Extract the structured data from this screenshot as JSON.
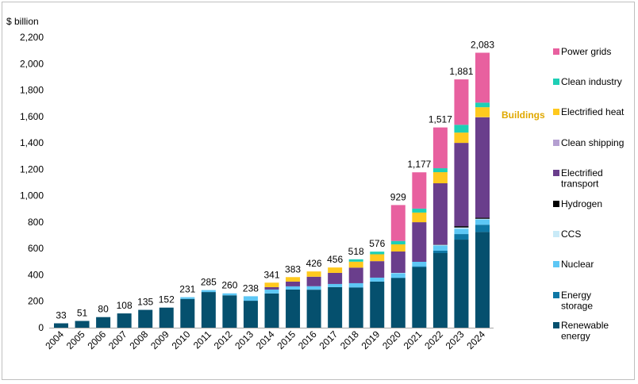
{
  "chart_data": {
    "type": "bar",
    "stacked": true,
    "ylabel": "$ billion",
    "ylim": [
      0,
      2200
    ],
    "yticks": [
      0,
      200,
      400,
      600,
      800,
      1000,
      1200,
      1400,
      1600,
      1800,
      2000,
      2200
    ],
    "ytick_labels": [
      "0",
      "200",
      "400",
      "600",
      "800",
      "1,000",
      "1,200",
      "1,400",
      "1,600",
      "1,800",
      "2,000",
      "2,200"
    ],
    "grid": false,
    "legend_position": "right",
    "categories": [
      "2004",
      "2005",
      "2006",
      "2007",
      "2008",
      "2009",
      "2010",
      "2011",
      "2012",
      "2013",
      "2014",
      "2015",
      "2016",
      "2017",
      "2018",
      "2019",
      "2020",
      "2021",
      "2022",
      "2023",
      "2024"
    ],
    "totals": [
      33,
      51,
      80,
      108,
      135,
      152,
      231,
      285,
      260,
      238,
      341,
      383,
      426,
      456,
      518,
      576,
      929,
      1177,
      1517,
      1881,
      2083
    ],
    "total_labels": [
      "33",
      "51",
      "80",
      "108",
      "135",
      "152",
      "231",
      "285",
      "260",
      "238",
      "341",
      "383",
      "426",
      "456",
      "518",
      "576",
      "929",
      "1,177",
      "1,517",
      "1,881",
      "2,083"
    ],
    "series": [
      {
        "name": "Renewable energy",
        "color": "#05506E",
        "values": [
          33,
          51,
          80,
          108,
          135,
          152,
          218,
          270,
          245,
          204,
          259,
          289,
          287,
          307,
          302,
          349,
          375,
          457,
          565,
          667,
          725
        ]
      },
      {
        "name": "Energy storage",
        "color": "#0E77A5",
        "values": [
          0,
          0,
          0,
          0,
          0,
          0,
          0,
          0,
          0,
          0,
          0,
          0,
          3,
          0,
          6,
          0,
          4,
          8,
          18,
          42,
          55
        ]
      },
      {
        "name": "Nuclear",
        "color": "#5DC7F5",
        "values": [
          0,
          0,
          0,
          0,
          0,
          0,
          13,
          15,
          15,
          34,
          30,
          24,
          24,
          24,
          29,
          30,
          33,
          34,
          40,
          40,
          40
        ]
      },
      {
        "name": "CCS",
        "color": "#C9EAF7",
        "values": [
          0,
          0,
          0,
          0,
          0,
          0,
          0,
          0,
          0,
          0,
          0,
          0,
          0,
          0,
          0,
          0,
          3,
          0,
          4,
          10,
          5
        ]
      },
      {
        "name": "Hydrogen",
        "color": "#000000",
        "values": [
          0,
          0,
          0,
          0,
          0,
          0,
          0,
          0,
          0,
          0,
          0,
          0,
          0,
          0,
          0,
          0,
          0,
          0,
          2,
          10,
          8
        ]
      },
      {
        "name": "Electrified transport",
        "color": "#6A3E8C",
        "values": [
          0,
          0,
          0,
          0,
          0,
          0,
          0,
          0,
          0,
          0,
          18,
          36,
          72,
          84,
          118,
          125,
          162,
          300,
          465,
          631,
          760
        ]
      },
      {
        "name": "Clean shipping",
        "color": "#B49FD1",
        "values": [
          0,
          0,
          0,
          0,
          0,
          0,
          0,
          0,
          0,
          0,
          0,
          0,
          0,
          0,
          0,
          0,
          0,
          0,
          0,
          0,
          2
        ]
      },
      {
        "name": "Electrified heat",
        "color": "#FFC91E",
        "values": [
          0,
          0,
          0,
          0,
          0,
          0,
          0,
          0,
          0,
          0,
          34,
          34,
          40,
          41,
          45,
          52,
          54,
          73,
          84,
          78,
          75
        ]
      },
      {
        "name": "Clean industry",
        "color": "#1ECFB5",
        "values": [
          0,
          0,
          0,
          0,
          0,
          0,
          0,
          0,
          0,
          0,
          0,
          0,
          0,
          0,
          18,
          20,
          26,
          30,
          30,
          59,
          35
        ]
      },
      {
        "name": "Power grids",
        "color": "#E8609F",
        "values": [
          0,
          0,
          0,
          0,
          0,
          0,
          0,
          0,
          0,
          0,
          0,
          0,
          0,
          0,
          0,
          0,
          272,
          275,
          309,
          344,
          378
        ]
      }
    ],
    "legend_labels": [
      [
        "Power grids"
      ],
      [
        "Clean industry"
      ],
      [
        "Electrified heat"
      ],
      [
        "Clean shipping"
      ],
      [
        "Electrified",
        "transport"
      ],
      [
        "Hydrogen"
      ],
      [
        "CCS"
      ],
      [
        "Nuclear"
      ],
      [
        "Energy",
        "storage"
      ],
      [
        "Renewable",
        "energy"
      ]
    ],
    "annotations": [
      {
        "text": "Buildings",
        "color": "#E0A800"
      }
    ]
  }
}
